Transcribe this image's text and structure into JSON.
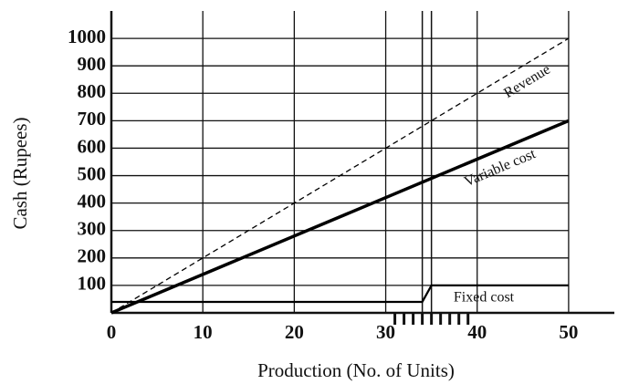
{
  "chart_data": {
    "type": "line",
    "x_label": "Production (No. of Units)",
    "y_label": "Cash (Rupees)",
    "xlim": [
      0,
      55
    ],
    "ylim": [
      0,
      1100
    ],
    "xticks": [
      0,
      10,
      20,
      30,
      40,
      50
    ],
    "yticks": [
      100,
      200,
      300,
      400,
      500,
      600,
      700,
      800,
      900,
      1000
    ],
    "xminor": [
      31,
      32,
      33,
      34,
      35,
      36,
      37,
      38,
      39
    ],
    "vlines": [
      34,
      35
    ],
    "grid": true,
    "series": [
      {
        "name": "Revenue",
        "color": "#000000",
        "style": "dashed",
        "x": [
          0,
          50
        ],
        "values": [
          0,
          1000
        ]
      },
      {
        "name": "Variable cost",
        "color": "#000000",
        "style": "thick",
        "x": [
          0,
          50
        ],
        "values": [
          0,
          700
        ]
      },
      {
        "name": "Fixed cost",
        "color": "#000000",
        "style": "solid",
        "x": [
          0,
          34,
          35,
          50
        ],
        "values": [
          40,
          40,
          100,
          100
        ]
      }
    ]
  }
}
